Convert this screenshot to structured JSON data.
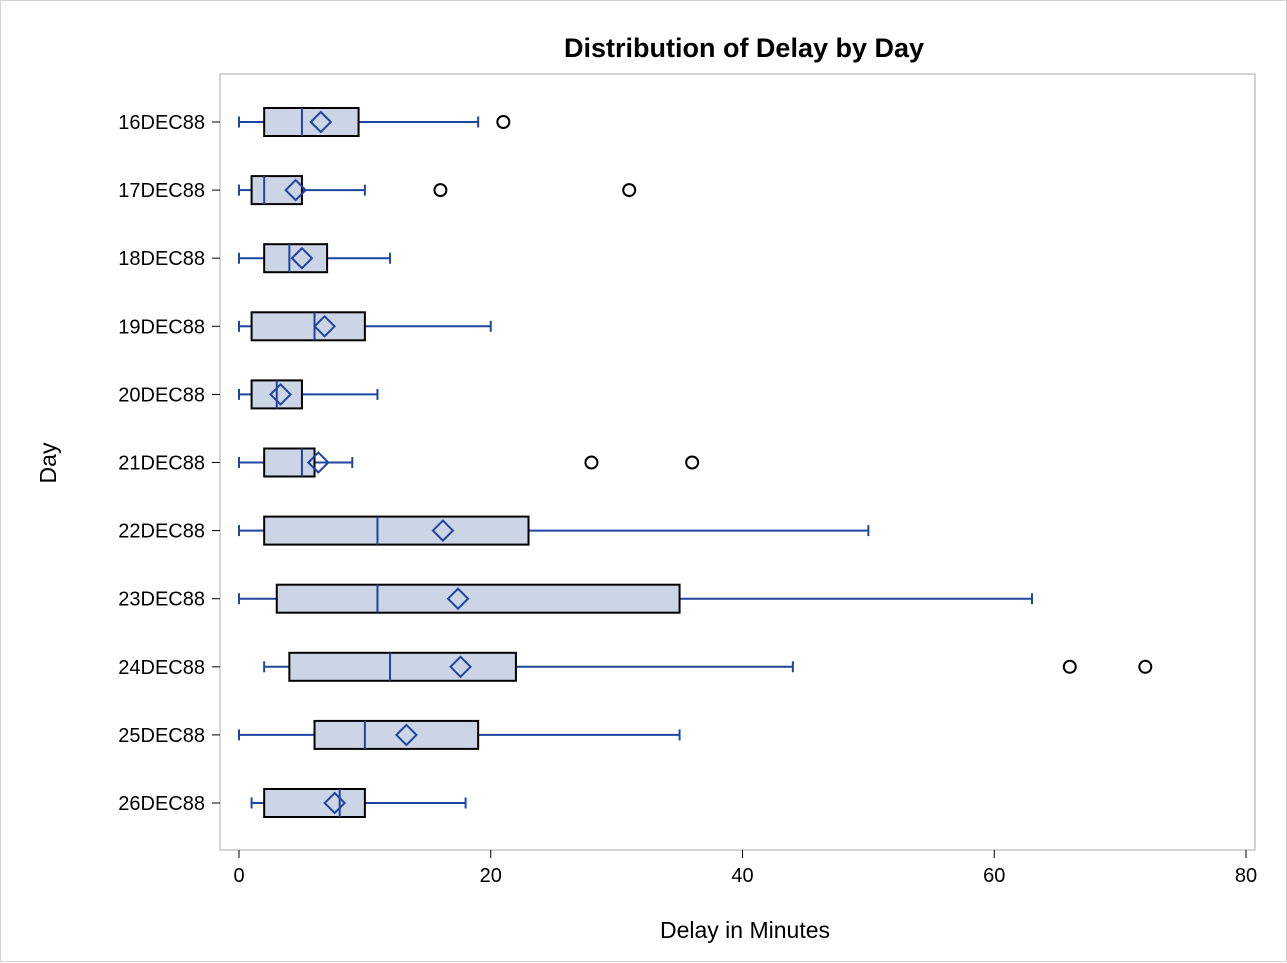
{
  "chart_data": {
    "type": "box",
    "orientation": "horizontal",
    "title": "Distribution of Delay by Day",
    "xlabel": "Delay in Minutes",
    "ylabel": "Day",
    "xlim": [
      -2,
      81
    ],
    "xticks": [
      0,
      20,
      40,
      60,
      80
    ],
    "grid": false,
    "legend": "none",
    "colors": {
      "box_fill": "#cbd5e5",
      "box_edge": "#000000",
      "whisker": "#1f45a0",
      "mean_marker": "#1f45a0",
      "outlier": "#000000"
    },
    "categories": [
      "16DEC88",
      "17DEC88",
      "18DEC88",
      "19DEC88",
      "20DEC88",
      "21DEC88",
      "22DEC88",
      "23DEC88",
      "24DEC88",
      "25DEC88",
      "26DEC88"
    ],
    "boxes": [
      {
        "min": 0,
        "q1": 2,
        "median": 5,
        "q3": 9.5,
        "max": 19,
        "mean": 6.5,
        "outliers": [
          21
        ]
      },
      {
        "min": 0,
        "q1": 1,
        "median": 2,
        "q3": 5,
        "max": 10,
        "mean": 4.5,
        "outliers": [
          16,
          31
        ]
      },
      {
        "min": 0,
        "q1": 2,
        "median": 4,
        "q3": 7,
        "max": 12,
        "mean": 5,
        "outliers": []
      },
      {
        "min": 0,
        "q1": 1,
        "median": 6,
        "q3": 10,
        "max": 20,
        "mean": 6.8,
        "outliers": []
      },
      {
        "min": 0,
        "q1": 1,
        "median": 3,
        "q3": 5,
        "max": 11,
        "mean": 3.3,
        "outliers": []
      },
      {
        "min": 0,
        "q1": 2,
        "median": 5,
        "q3": 6,
        "max": 9,
        "mean": 6.3,
        "outliers": [
          28,
          36
        ]
      },
      {
        "min": 0,
        "q1": 2,
        "median": 11,
        "q3": 23,
        "max": 50,
        "mean": 16.2,
        "outliers": []
      },
      {
        "min": 0,
        "q1": 3,
        "median": 11,
        "q3": 35,
        "max": 63,
        "mean": 17.4,
        "outliers": []
      },
      {
        "min": 2,
        "q1": 4,
        "median": 12,
        "q3": 22,
        "max": 44,
        "mean": 17.6,
        "outliers": [
          66,
          72
        ]
      },
      {
        "min": 0,
        "q1": 6,
        "median": 10,
        "q3": 19,
        "max": 35,
        "mean": 13.3,
        "outliers": []
      },
      {
        "min": 1,
        "q1": 2,
        "median": 8,
        "q3": 10,
        "max": 18,
        "mean": 7.6,
        "outliers": []
      }
    ]
  }
}
